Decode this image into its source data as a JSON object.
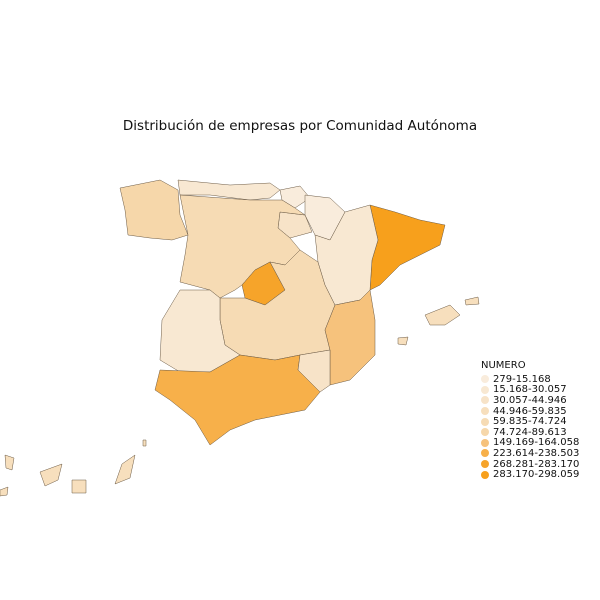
{
  "title": "Distribución de empresas por Comunidad Autónoma",
  "legend": {
    "title": "NUMERO",
    "items": [
      {
        "label": "279-15.168",
        "color": "#f9ecdc"
      },
      {
        "label": "15.168-30.057",
        "color": "#f8e8d2"
      },
      {
        "label": "30.057-44.946",
        "color": "#f7e3c8"
      },
      {
        "label": "44.946-59.835",
        "color": "#f7dfbd"
      },
      {
        "label": "59.835-74.724",
        "color": "#f6dbb4"
      },
      {
        "label": "74.724-89.613",
        "color": "#f6d7aa"
      },
      {
        "label": "149.169-164.058",
        "color": "#f6c27c"
      },
      {
        "label": "223.614-238.503",
        "color": "#f7b04a"
      },
      {
        "label": "268.281-283.170",
        "color": "#f6a42a"
      },
      {
        "label": "283.170-298.059",
        "color": "#f7a01c"
      }
    ]
  },
  "map": {
    "regions": [
      {
        "bucket": 5
      },
      {
        "bucket": 1
      },
      {
        "bucket": 0
      },
      {
        "bucket": 0
      },
      {
        "bucket": 2
      },
      {
        "bucket": 9
      },
      {
        "bucket": 4
      },
      {
        "bucket": 8
      },
      {
        "bucket": 4
      },
      {
        "bucket": 1
      },
      {
        "bucket": 6
      },
      {
        "bucket": 1
      },
      {
        "bucket": 7
      },
      {
        "bucket": 2
      },
      {
        "bucket": 3
      }
    ]
  }
}
